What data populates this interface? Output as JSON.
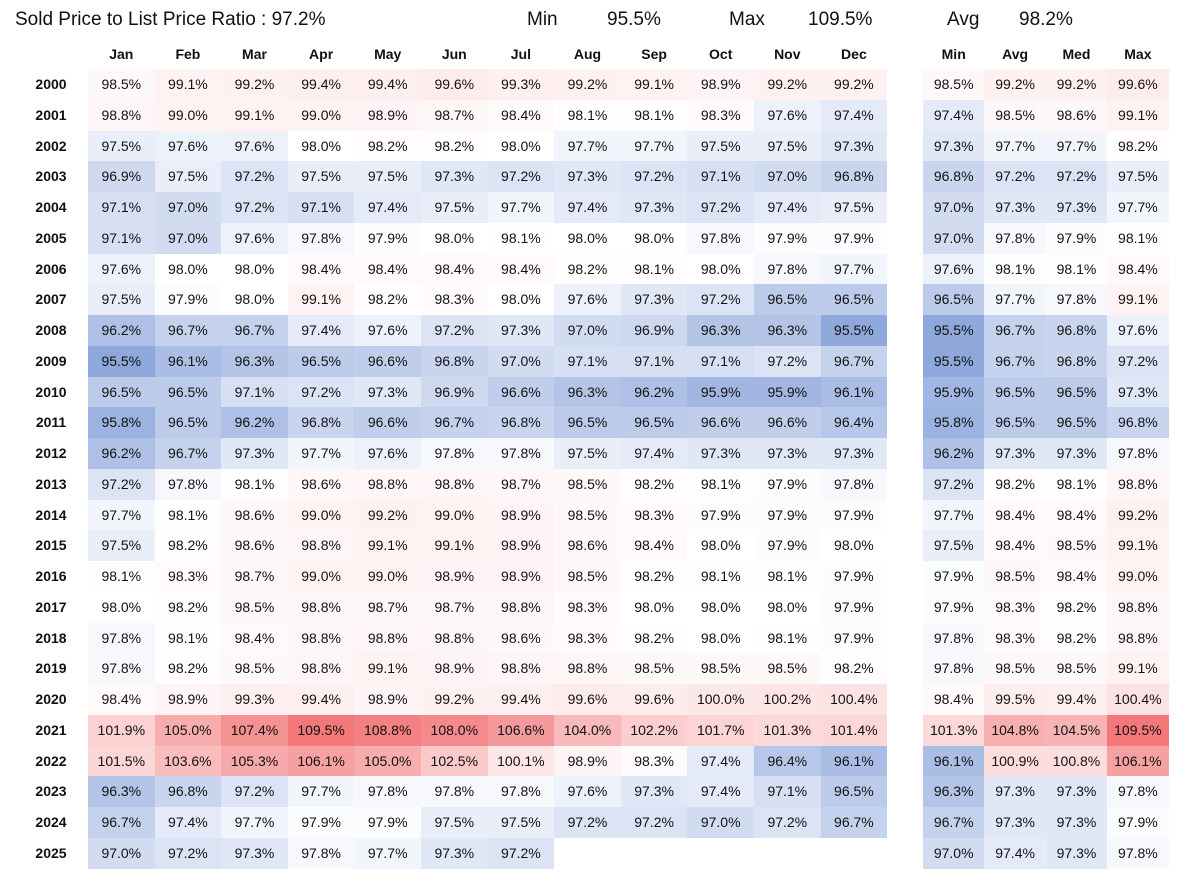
{
  "header": {
    "title": "Sold Price to List Price Ratio : 97.2%",
    "min_label": "Min",
    "min_value": "95.5%",
    "max_label": "Max",
    "max_value": "109.5%",
    "avg_label": "Avg",
    "avg_value": "98.2%"
  },
  "colors": {
    "low": "#8fa8dc",
    "mid": "#ffffff",
    "high": "#f2787a",
    "text": "#111111"
  },
  "chart_data": {
    "type": "heatmap",
    "color_scale": {
      "min": 95.5,
      "mid": 98.0,
      "max": 109.5
    },
    "months": [
      "Jan",
      "Feb",
      "Mar",
      "Apr",
      "May",
      "Jun",
      "Jul",
      "Aug",
      "Sep",
      "Oct",
      "Nov",
      "Dec"
    ],
    "summary_columns": [
      "Min",
      "Avg",
      "Med",
      "Max"
    ],
    "years": [
      "2000",
      "2001",
      "2002",
      "2003",
      "2004",
      "2005",
      "2006",
      "2007",
      "2008",
      "2009",
      "2010",
      "2011",
      "2012",
      "2013",
      "2014",
      "2015",
      "2016",
      "2017",
      "2018",
      "2019",
      "2020",
      "2021",
      "2022",
      "2023",
      "2024",
      "2025"
    ],
    "monthly": [
      [
        98.5,
        99.1,
        99.2,
        99.4,
        99.4,
        99.6,
        99.3,
        99.2,
        99.1,
        98.9,
        99.2,
        99.2
      ],
      [
        98.8,
        99.0,
        99.1,
        99.0,
        98.9,
        98.7,
        98.4,
        98.1,
        98.1,
        98.3,
        97.6,
        97.4
      ],
      [
        97.5,
        97.6,
        97.6,
        98.0,
        98.2,
        98.2,
        98.0,
        97.7,
        97.7,
        97.5,
        97.5,
        97.3
      ],
      [
        96.9,
        97.5,
        97.2,
        97.5,
        97.5,
        97.3,
        97.2,
        97.3,
        97.2,
        97.1,
        97.0,
        96.8
      ],
      [
        97.1,
        97.0,
        97.2,
        97.1,
        97.4,
        97.5,
        97.7,
        97.4,
        97.3,
        97.2,
        97.4,
        97.5
      ],
      [
        97.1,
        97.0,
        97.6,
        97.8,
        97.9,
        98.0,
        98.1,
        98.0,
        98.0,
        97.8,
        97.9,
        97.9
      ],
      [
        97.6,
        98.0,
        98.0,
        98.4,
        98.4,
        98.4,
        98.4,
        98.2,
        98.1,
        98.0,
        97.8,
        97.7
      ],
      [
        97.5,
        97.9,
        98.0,
        99.1,
        98.2,
        98.3,
        98.0,
        97.6,
        97.3,
        97.2,
        96.5,
        96.5
      ],
      [
        96.2,
        96.7,
        96.7,
        97.4,
        97.6,
        97.2,
        97.3,
        97.0,
        96.9,
        96.3,
        96.3,
        95.5
      ],
      [
        95.5,
        96.1,
        96.3,
        96.5,
        96.6,
        96.8,
        97.0,
        97.1,
        97.1,
        97.1,
        97.2,
        96.7
      ],
      [
        96.5,
        96.5,
        97.1,
        97.2,
        97.3,
        96.9,
        96.6,
        96.3,
        96.2,
        95.9,
        95.9,
        96.1
      ],
      [
        95.8,
        96.5,
        96.2,
        96.8,
        96.6,
        96.7,
        96.8,
        96.5,
        96.5,
        96.6,
        96.6,
        96.4
      ],
      [
        96.2,
        96.7,
        97.3,
        97.7,
        97.6,
        97.8,
        97.8,
        97.5,
        97.4,
        97.3,
        97.3,
        97.3
      ],
      [
        97.2,
        97.8,
        98.1,
        98.6,
        98.8,
        98.8,
        98.7,
        98.5,
        98.2,
        98.1,
        97.9,
        97.8
      ],
      [
        97.7,
        98.1,
        98.6,
        99.0,
        99.2,
        99.0,
        98.9,
        98.5,
        98.3,
        97.9,
        97.9,
        97.9
      ],
      [
        97.5,
        98.2,
        98.6,
        98.8,
        99.1,
        99.1,
        98.9,
        98.6,
        98.4,
        98.0,
        97.9,
        98.0
      ],
      [
        98.1,
        98.3,
        98.7,
        99.0,
        99.0,
        98.9,
        98.9,
        98.5,
        98.2,
        98.1,
        98.1,
        97.9
      ],
      [
        98.0,
        98.2,
        98.5,
        98.8,
        98.7,
        98.7,
        98.8,
        98.3,
        98.0,
        98.0,
        98.0,
        97.9
      ],
      [
        97.8,
        98.1,
        98.4,
        98.8,
        98.8,
        98.8,
        98.6,
        98.3,
        98.2,
        98.0,
        98.1,
        97.9
      ],
      [
        97.8,
        98.2,
        98.5,
        98.8,
        99.1,
        98.9,
        98.8,
        98.8,
        98.5,
        98.5,
        98.5,
        98.2
      ],
      [
        98.4,
        98.9,
        99.3,
        99.4,
        98.9,
        99.2,
        99.4,
        99.6,
        99.6,
        100.0,
        100.2,
        100.4
      ],
      [
        101.9,
        105.0,
        107.4,
        109.5,
        108.8,
        108.0,
        106.6,
        104.0,
        102.2,
        101.7,
        101.3,
        101.4
      ],
      [
        101.5,
        103.6,
        105.3,
        106.1,
        105.0,
        102.5,
        100.1,
        98.9,
        98.3,
        97.4,
        96.4,
        96.1
      ],
      [
        96.3,
        96.8,
        97.2,
        97.7,
        97.8,
        97.8,
        97.8,
        97.6,
        97.3,
        97.4,
        97.1,
        96.5
      ],
      [
        96.7,
        97.4,
        97.7,
        97.9,
        97.9,
        97.5,
        97.5,
        97.2,
        97.2,
        97.0,
        97.2,
        96.7
      ],
      [
        97.0,
        97.2,
        97.3,
        97.8,
        97.7,
        97.3,
        97.2,
        null,
        null,
        null,
        null,
        null
      ]
    ],
    "summary": [
      [
        98.5,
        99.2,
        99.2,
        99.6
      ],
      [
        97.4,
        98.5,
        98.6,
        99.1
      ],
      [
        97.3,
        97.7,
        97.7,
        98.2
      ],
      [
        96.8,
        97.2,
        97.2,
        97.5
      ],
      [
        97.0,
        97.3,
        97.3,
        97.7
      ],
      [
        97.0,
        97.8,
        97.9,
        98.1
      ],
      [
        97.6,
        98.1,
        98.1,
        98.4
      ],
      [
        96.5,
        97.7,
        97.8,
        99.1
      ],
      [
        95.5,
        96.7,
        96.8,
        97.6
      ],
      [
        95.5,
        96.7,
        96.8,
        97.2
      ],
      [
        95.9,
        96.5,
        96.5,
        97.3
      ],
      [
        95.8,
        96.5,
        96.5,
        96.8
      ],
      [
        96.2,
        97.3,
        97.3,
        97.8
      ],
      [
        97.2,
        98.2,
        98.1,
        98.8
      ],
      [
        97.7,
        98.4,
        98.4,
        99.2
      ],
      [
        97.5,
        98.4,
        98.5,
        99.1
      ],
      [
        97.9,
        98.5,
        98.4,
        99.0
      ],
      [
        97.9,
        98.3,
        98.2,
        98.8
      ],
      [
        97.8,
        98.3,
        98.2,
        98.8
      ],
      [
        97.8,
        98.5,
        98.5,
        99.1
      ],
      [
        98.4,
        99.5,
        99.4,
        100.4
      ],
      [
        101.3,
        104.8,
        104.5,
        109.5
      ],
      [
        96.1,
        100.9,
        100.8,
        106.1
      ],
      [
        96.3,
        97.3,
        97.3,
        97.8
      ],
      [
        96.7,
        97.3,
        97.3,
        97.9
      ],
      [
        97.0,
        97.4,
        97.3,
        97.8
      ]
    ]
  }
}
